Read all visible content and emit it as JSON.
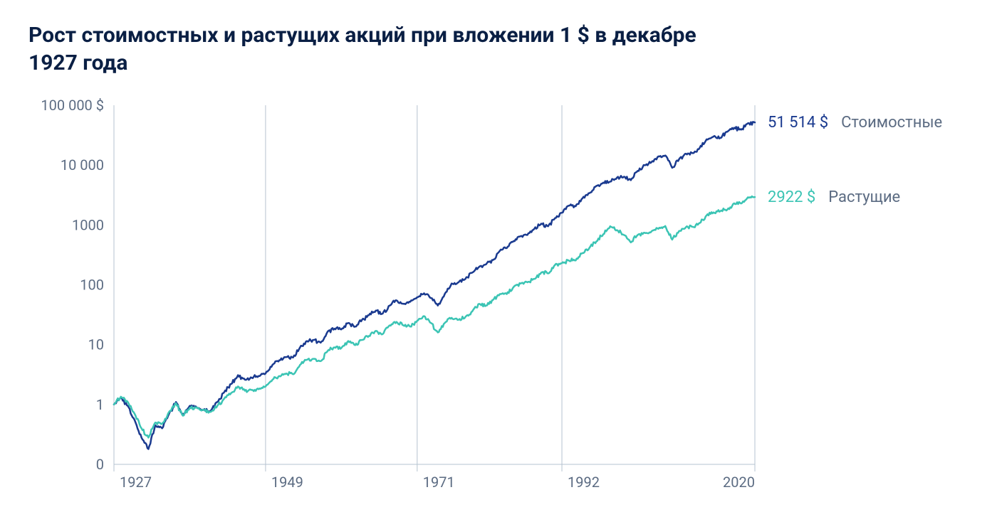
{
  "title": "Рост стоимостных и растущих акций при вложении 1 $ в декабре 1927 года",
  "chart": {
    "type": "line",
    "scale": "log",
    "background": "#ffffff",
    "grid_color": "#b6c3d0",
    "text_color": "#5b6b82",
    "title_color": "#0a1f44",
    "line_width": 2.5,
    "x_domain": [
      1927,
      2020
    ],
    "x_ticks": [
      1927,
      1949,
      1971,
      1992,
      2020
    ],
    "y_domain_log10": [
      -1,
      5
    ],
    "y_ticks": [
      {
        "v": 0.1,
        "label": "0"
      },
      {
        "v": 1,
        "label": "1"
      },
      {
        "v": 10,
        "label": "10"
      },
      {
        "v": 100,
        "label": "100"
      },
      {
        "v": 1000,
        "label": "1000"
      },
      {
        "v": 10000,
        "label": "10 000"
      },
      {
        "v": 100000,
        "label": "100 000 $"
      }
    ],
    "series": [
      {
        "id": "value",
        "name": "Стоимостные",
        "color": "#1a3a8f",
        "end_value_label": "51 514 $",
        "end_label_color": "#1a3a8f",
        "data": [
          [
            1927,
            1.0
          ],
          [
            1928,
            1.3
          ],
          [
            1929,
            0.95
          ],
          [
            1930,
            0.55
          ],
          [
            1931,
            0.28
          ],
          [
            1932,
            0.18
          ],
          [
            1933,
            0.45
          ],
          [
            1934,
            0.4
          ],
          [
            1935,
            0.7
          ],
          [
            1936,
            1.1
          ],
          [
            1937,
            0.68
          ],
          [
            1938,
            0.95
          ],
          [
            1939,
            0.9
          ],
          [
            1940,
            0.82
          ],
          [
            1941,
            0.78
          ],
          [
            1942,
            1.1
          ],
          [
            1943,
            1.6
          ],
          [
            1944,
            2.2
          ],
          [
            1945,
            3.1
          ],
          [
            1946,
            2.6
          ],
          [
            1947,
            2.8
          ],
          [
            1948,
            3.0
          ],
          [
            1949,
            3.3
          ],
          [
            1950,
            4.6
          ],
          [
            1951,
            5.5
          ],
          [
            1952,
            6.2
          ],
          [
            1953,
            6.1
          ],
          [
            1954,
            9.0
          ],
          [
            1955,
            11.5
          ],
          [
            1956,
            12.0
          ],
          [
            1957,
            10.8
          ],
          [
            1958,
            16.5
          ],
          [
            1959,
            18.5
          ],
          [
            1960,
            18.0
          ],
          [
            1961,
            23.0
          ],
          [
            1962,
            20.0
          ],
          [
            1963,
            26.0
          ],
          [
            1964,
            31.0
          ],
          [
            1965,
            37.0
          ],
          [
            1966,
            33.0
          ],
          [
            1967,
            45.0
          ],
          [
            1968,
            55.0
          ],
          [
            1969,
            48.0
          ],
          [
            1970,
            52.0
          ],
          [
            1971,
            62.0
          ],
          [
            1972,
            72.0
          ],
          [
            1973,
            60.0
          ],
          [
            1974,
            45.0
          ],
          [
            1975,
            70.0
          ],
          [
            1976,
            105.0
          ],
          [
            1977,
            110.0
          ],
          [
            1978,
            125.0
          ],
          [
            1979,
            160.0
          ],
          [
            1980,
            200.0
          ],
          [
            1981,
            220.0
          ],
          [
            1982,
            260.0
          ],
          [
            1983,
            370.0
          ],
          [
            1984,
            410.0
          ],
          [
            1985,
            540.0
          ],
          [
            1986,
            650.0
          ],
          [
            1987,
            680.0
          ],
          [
            1988,
            860.0
          ],
          [
            1989,
            1050.0
          ],
          [
            1990,
            950.0
          ],
          [
            1991,
            1300.0
          ],
          [
            1992,
            1600.0
          ],
          [
            1993,
            2100.0
          ],
          [
            1994,
            2050.0
          ],
          [
            1995,
            2800.0
          ],
          [
            1996,
            3400.0
          ],
          [
            1997,
            4500.0
          ],
          [
            1998,
            5100.0
          ],
          [
            1999,
            5300.0
          ],
          [
            2000,
            6200.0
          ],
          [
            2001,
            6400.0
          ],
          [
            2002,
            5600.0
          ],
          [
            2003,
            8000.0
          ],
          [
            2004,
            10000.0
          ],
          [
            2005,
            11200.0
          ],
          [
            2006,
            14000.0
          ],
          [
            2007,
            14500.0
          ],
          [
            2008,
            9000.0
          ],
          [
            2009,
            12500.0
          ],
          [
            2010,
            15500.0
          ],
          [
            2011,
            15800.0
          ],
          [
            2012,
            19500.0
          ],
          [
            2013,
            27000.0
          ],
          [
            2014,
            30000.0
          ],
          [
            2015,
            28500.0
          ],
          [
            2016,
            36000.0
          ],
          [
            2017,
            42000.0
          ],
          [
            2018,
            39000.0
          ],
          [
            2019,
            50000.0
          ],
          [
            2020,
            51514.0
          ]
        ]
      },
      {
        "id": "growth",
        "name": "Растущие",
        "color": "#3bc4b4",
        "end_value_label": "2922 $",
        "end_label_color": "#3bc4b4",
        "data": [
          [
            1927,
            1.0
          ],
          [
            1928,
            1.35
          ],
          [
            1929,
            1.1
          ],
          [
            1930,
            0.7
          ],
          [
            1931,
            0.4
          ],
          [
            1932,
            0.28
          ],
          [
            1933,
            0.5
          ],
          [
            1934,
            0.48
          ],
          [
            1935,
            0.75
          ],
          [
            1936,
            1.05
          ],
          [
            1937,
            0.65
          ],
          [
            1938,
            0.88
          ],
          [
            1939,
            0.9
          ],
          [
            1940,
            0.82
          ],
          [
            1941,
            0.75
          ],
          [
            1942,
            0.95
          ],
          [
            1943,
            1.25
          ],
          [
            1944,
            1.55
          ],
          [
            1945,
            2.0
          ],
          [
            1946,
            1.7
          ],
          [
            1947,
            1.75
          ],
          [
            1948,
            1.8
          ],
          [
            1949,
            2.0
          ],
          [
            1950,
            2.6
          ],
          [
            1951,
            3.0
          ],
          [
            1952,
            3.3
          ],
          [
            1953,
            3.2
          ],
          [
            1954,
            4.6
          ],
          [
            1955,
            5.6
          ],
          [
            1956,
            5.8
          ],
          [
            1957,
            5.3
          ],
          [
            1958,
            7.8
          ],
          [
            1959,
            9.0
          ],
          [
            1960,
            8.8
          ],
          [
            1961,
            11.5
          ],
          [
            1962,
            9.8
          ],
          [
            1963,
            12.0
          ],
          [
            1964,
            14.0
          ],
          [
            1965,
            17.0
          ],
          [
            1966,
            15.0
          ],
          [
            1967,
            21.0
          ],
          [
            1968,
            24.0
          ],
          [
            1969,
            21.0
          ],
          [
            1970,
            20.0
          ],
          [
            1971,
            25.0
          ],
          [
            1972,
            30.0
          ],
          [
            1973,
            23.0
          ],
          [
            1974,
            16.0
          ],
          [
            1975,
            23.0
          ],
          [
            1976,
            28.0
          ],
          [
            1977,
            26.0
          ],
          [
            1978,
            29.0
          ],
          [
            1979,
            36.0
          ],
          [
            1980,
            48.0
          ],
          [
            1981,
            45.0
          ],
          [
            1982,
            56.0
          ],
          [
            1983,
            70.0
          ],
          [
            1984,
            70.0
          ],
          [
            1985,
            92.0
          ],
          [
            1986,
            105.0
          ],
          [
            1987,
            110.0
          ],
          [
            1988,
            125.0
          ],
          [
            1989,
            160.0
          ],
          [
            1990,
            155.0
          ],
          [
            1991,
            215.0
          ],
          [
            1992,
            230.0
          ],
          [
            1993,
            255.0
          ],
          [
            1994,
            255.0
          ],
          [
            1995,
            340.0
          ],
          [
            1996,
            415.0
          ],
          [
            1997,
            530.0
          ],
          [
            1998,
            700.0
          ],
          [
            1999,
            950.0
          ],
          [
            2000,
            820.0
          ],
          [
            2001,
            680.0
          ],
          [
            2002,
            510.0
          ],
          [
            2003,
            680.0
          ],
          [
            2004,
            740.0
          ],
          [
            2005,
            780.0
          ],
          [
            2006,
            860.0
          ],
          [
            2007,
            960.0
          ],
          [
            2008,
            570.0
          ],
          [
            2009,
            790.0
          ],
          [
            2010,
            920.0
          ],
          [
            2011,
            930.0
          ],
          [
            2012,
            1080.0
          ],
          [
            2013,
            1450.0
          ],
          [
            2014,
            1620.0
          ],
          [
            2015,
            1700.0
          ],
          [
            2016,
            1800.0
          ],
          [
            2017,
            2300.0
          ],
          [
            2018,
            2280.0
          ],
          [
            2019,
            2900.0
          ],
          [
            2020,
            2922.0
          ]
        ]
      }
    ]
  }
}
